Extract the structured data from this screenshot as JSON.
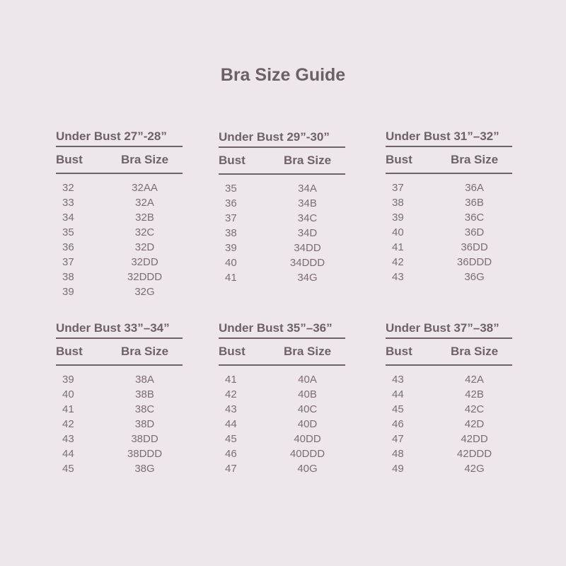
{
  "title": "Bra Size Guide",
  "column_headers": {
    "bust": "Bust",
    "bra_size": "Bra Size"
  },
  "tables": [
    {
      "caption": "Under Bust 27”-28”",
      "rows": [
        [
          "32",
          "32AA"
        ],
        [
          "33",
          "32A"
        ],
        [
          "34",
          "32B"
        ],
        [
          "35",
          "32C"
        ],
        [
          "36",
          "32D"
        ],
        [
          "37",
          "32DD"
        ],
        [
          "38",
          "32DDD"
        ],
        [
          "39",
          "32G"
        ]
      ]
    },
    {
      "caption": "Under Bust 29”-30”",
      "rows": [
        [
          "35",
          "34A"
        ],
        [
          "36",
          "34B"
        ],
        [
          "37",
          "34C"
        ],
        [
          "38",
          "34D"
        ],
        [
          "39",
          "34DD"
        ],
        [
          "40",
          "34DDD"
        ],
        [
          "41",
          "34G"
        ]
      ]
    },
    {
      "caption": "Under Bust 31”–32”",
      "rows": [
        [
          "37",
          "36A"
        ],
        [
          "38",
          "36B"
        ],
        [
          "39",
          "36C"
        ],
        [
          "40",
          "36D"
        ],
        [
          "41",
          "36DD"
        ],
        [
          "42",
          "36DDD"
        ],
        [
          "43",
          "36G"
        ]
      ]
    },
    {
      "caption": "Under Bust 33”–34”",
      "rows": [
        [
          "39",
          "38A"
        ],
        [
          "40",
          "38B"
        ],
        [
          "41",
          "38C"
        ],
        [
          "42",
          "38D"
        ],
        [
          "43",
          "38DD"
        ],
        [
          "44",
          "38DDD"
        ],
        [
          "45",
          "38G"
        ]
      ]
    },
    {
      "caption": "Under Bust 35”–36”",
      "rows": [
        [
          "41",
          "40A"
        ],
        [
          "42",
          "40B"
        ],
        [
          "43",
          "40C"
        ],
        [
          "44",
          "40D"
        ],
        [
          "45",
          "40DD"
        ],
        [
          "46",
          "40DDD"
        ],
        [
          "47",
          "40G"
        ]
      ]
    },
    {
      "caption": "Under Bust 37”–38”",
      "rows": [
        [
          "43",
          "42A"
        ],
        [
          "44",
          "42B"
        ],
        [
          "45",
          "42C"
        ],
        [
          "46",
          "42D"
        ],
        [
          "47",
          "42DD"
        ],
        [
          "48",
          "42DDD"
        ],
        [
          "49",
          "42G"
        ]
      ]
    }
  ],
  "colors": {
    "background": "#ede6ea",
    "text": "#6f6169"
  }
}
